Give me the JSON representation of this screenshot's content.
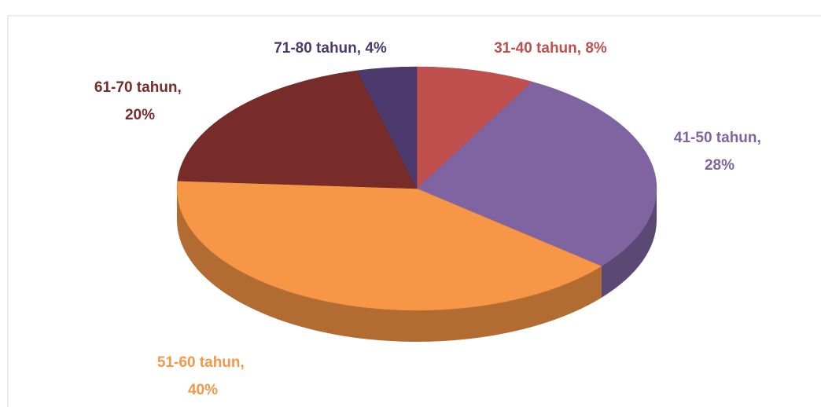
{
  "chart_data": {
    "type": "pie3d",
    "labels": [
      "31-40 tahun, 8%",
      "41-50 tahun, 28%",
      "51-60 tahun, 40%",
      "61-70 tahun, 20%",
      "71-80 tahun, 4%"
    ],
    "values": [
      8,
      28,
      40,
      20,
      4
    ],
    "colors": [
      "#c0504d",
      "#8064a2",
      "#f79646",
      "#772c2a",
      "#4b3a6b"
    ]
  }
}
